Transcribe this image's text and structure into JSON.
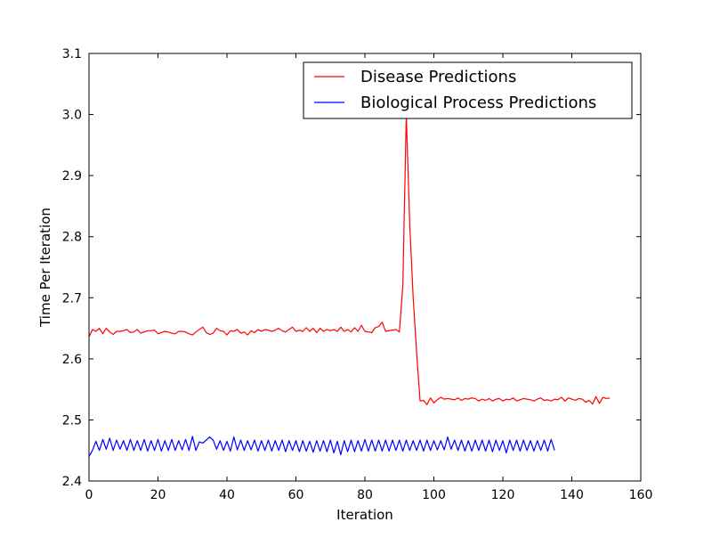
{
  "chart_data": {
    "type": "line",
    "title": "",
    "xlabel": "Iteration",
    "ylabel": "Time Per Iteration",
    "xlim": [
      0,
      160
    ],
    "ylim": [
      2.4,
      3.1
    ],
    "xticks": [
      0,
      20,
      40,
      60,
      80,
      100,
      120,
      140,
      160
    ],
    "yticks": [
      2.4,
      2.5,
      2.6,
      2.7,
      2.8,
      2.9,
      3.0,
      3.1
    ],
    "ytick_labels": [
      "2.4",
      "2.5",
      "2.6",
      "2.7",
      "2.8",
      "2.9",
      "3.0",
      "3.1"
    ],
    "grid": false,
    "legend_position": "top-right",
    "series": [
      {
        "name": "Disease Predictions",
        "color": "#ff0000",
        "x": [
          0,
          1,
          2,
          3,
          4,
          5,
          6,
          7,
          8,
          9,
          10,
          11,
          12,
          13,
          14,
          15,
          16,
          17,
          18,
          19,
          20,
          21,
          22,
          23,
          24,
          25,
          26,
          27,
          28,
          29,
          30,
          31,
          32,
          33,
          34,
          35,
          36,
          37,
          38,
          39,
          40,
          41,
          42,
          43,
          44,
          45,
          46,
          47,
          48,
          49,
          50,
          51,
          52,
          53,
          54,
          55,
          56,
          57,
          58,
          59,
          60,
          61,
          62,
          63,
          64,
          65,
          66,
          67,
          68,
          69,
          70,
          71,
          72,
          73,
          74,
          75,
          76,
          77,
          78,
          79,
          80,
          81,
          82,
          83,
          84,
          85,
          86,
          87,
          88,
          89,
          90,
          91,
          92,
          93,
          94,
          95,
          96,
          97,
          98,
          99,
          100,
          101,
          102,
          103,
          104,
          105,
          106,
          107,
          108,
          109,
          110,
          111,
          112,
          113,
          114,
          115,
          116,
          117,
          118,
          119,
          120,
          121,
          122,
          123,
          124,
          125,
          126,
          127,
          128,
          129,
          130,
          131,
          132,
          133,
          134,
          135,
          136,
          137,
          138,
          139,
          140,
          141,
          142,
          143,
          144,
          145,
          146,
          147,
          148,
          149,
          150,
          151
        ],
        "y": [
          2.636,
          2.648,
          2.645,
          2.65,
          2.641,
          2.65,
          2.644,
          2.64,
          2.645,
          2.645,
          2.646,
          2.648,
          2.643,
          2.644,
          2.648,
          2.642,
          2.644,
          2.646,
          2.646,
          2.647,
          2.641,
          2.643,
          2.645,
          2.644,
          2.642,
          2.641,
          2.645,
          2.645,
          2.644,
          2.641,
          2.639,
          2.644,
          2.648,
          2.652,
          2.643,
          2.64,
          2.642,
          2.65,
          2.646,
          2.645,
          2.639,
          2.646,
          2.645,
          2.648,
          2.642,
          2.644,
          2.639,
          2.646,
          2.643,
          2.648,
          2.645,
          2.648,
          2.647,
          2.645,
          2.647,
          2.65,
          2.646,
          2.644,
          2.648,
          2.652,
          2.645,
          2.647,
          2.645,
          2.651,
          2.645,
          2.65,
          2.643,
          2.65,
          2.645,
          2.648,
          2.646,
          2.648,
          2.645,
          2.652,
          2.645,
          2.648,
          2.644,
          2.651,
          2.645,
          2.655,
          2.645,
          2.644,
          2.643,
          2.651,
          2.653,
          2.66,
          2.645,
          2.646,
          2.647,
          2.648,
          2.644,
          2.72,
          3.0,
          2.82,
          2.7,
          2.61,
          2.531,
          2.532,
          2.525,
          2.536,
          2.528,
          2.533,
          2.537,
          2.534,
          2.535,
          2.534,
          2.533,
          2.536,
          2.532,
          2.535,
          2.534,
          2.536,
          2.535,
          2.531,
          2.534,
          2.532,
          2.535,
          2.531,
          2.534,
          2.535,
          2.531,
          2.534,
          2.533,
          2.536,
          2.531,
          2.533,
          2.535,
          2.534,
          2.533,
          2.531,
          2.534,
          2.536,
          2.532,
          2.533,
          2.531,
          2.534,
          2.533,
          2.537,
          2.531,
          2.536,
          2.534,
          2.532,
          2.535,
          2.534,
          2.529,
          2.532,
          2.526,
          2.538,
          2.527,
          2.537,
          2.535,
          2.536
        ]
      },
      {
        "name": "Biological Process Predictions",
        "color": "#0000ff",
        "x": [
          0,
          1,
          2,
          3,
          4,
          5,
          6,
          7,
          8,
          9,
          10,
          11,
          12,
          13,
          14,
          15,
          16,
          17,
          18,
          19,
          20,
          21,
          22,
          23,
          24,
          25,
          26,
          27,
          28,
          29,
          30,
          31,
          32,
          33,
          34,
          35,
          36,
          37,
          38,
          39,
          40,
          41,
          42,
          43,
          44,
          45,
          46,
          47,
          48,
          49,
          50,
          51,
          52,
          53,
          54,
          55,
          56,
          57,
          58,
          59,
          60,
          61,
          62,
          63,
          64,
          65,
          66,
          67,
          68,
          69,
          70,
          71,
          72,
          73,
          74,
          75,
          76,
          77,
          78,
          79,
          80,
          81,
          82,
          83,
          84,
          85,
          86,
          87,
          88,
          89,
          90,
          91,
          92,
          93,
          94,
          95,
          96,
          97,
          98,
          99,
          100,
          101,
          102,
          103,
          104,
          105,
          106,
          107,
          108,
          109,
          110,
          111,
          112,
          113,
          114,
          115,
          116,
          117,
          118,
          119,
          120,
          121,
          122,
          123,
          124,
          125,
          126,
          127,
          128,
          129,
          130,
          131,
          132,
          133,
          134,
          135
        ],
        "y": [
          2.44,
          2.45,
          2.465,
          2.45,
          2.468,
          2.452,
          2.47,
          2.45,
          2.467,
          2.452,
          2.466,
          2.45,
          2.468,
          2.45,
          2.466,
          2.45,
          2.468,
          2.449,
          2.466,
          2.45,
          2.468,
          2.449,
          2.466,
          2.45,
          2.468,
          2.45,
          2.466,
          2.451,
          2.468,
          2.45,
          2.473,
          2.45,
          2.464,
          2.462,
          2.467,
          2.472,
          2.467,
          2.452,
          2.466,
          2.45,
          2.465,
          2.449,
          2.472,
          2.451,
          2.467,
          2.45,
          2.466,
          2.451,
          2.467,
          2.449,
          2.466,
          2.45,
          2.467,
          2.449,
          2.466,
          2.45,
          2.467,
          2.448,
          2.466,
          2.45,
          2.466,
          2.448,
          2.466,
          2.449,
          2.465,
          2.447,
          2.466,
          2.449,
          2.466,
          2.448,
          2.467,
          2.446,
          2.465,
          2.443,
          2.466,
          2.448,
          2.467,
          2.448,
          2.466,
          2.449,
          2.468,
          2.449,
          2.467,
          2.449,
          2.467,
          2.449,
          2.467,
          2.449,
          2.467,
          2.45,
          2.467,
          2.449,
          2.467,
          2.45,
          2.466,
          2.45,
          2.467,
          2.449,
          2.467,
          2.45,
          2.466,
          2.451,
          2.466,
          2.451,
          2.472,
          2.452,
          2.467,
          2.45,
          2.467,
          2.449,
          2.466,
          2.449,
          2.467,
          2.45,
          2.467,
          2.449,
          2.467,
          2.448,
          2.467,
          2.45,
          2.466,
          2.446,
          2.467,
          2.45,
          2.467,
          2.449,
          2.467,
          2.45,
          2.466,
          2.449,
          2.466,
          2.45,
          2.467,
          2.449,
          2.468,
          2.45
        ]
      }
    ]
  }
}
